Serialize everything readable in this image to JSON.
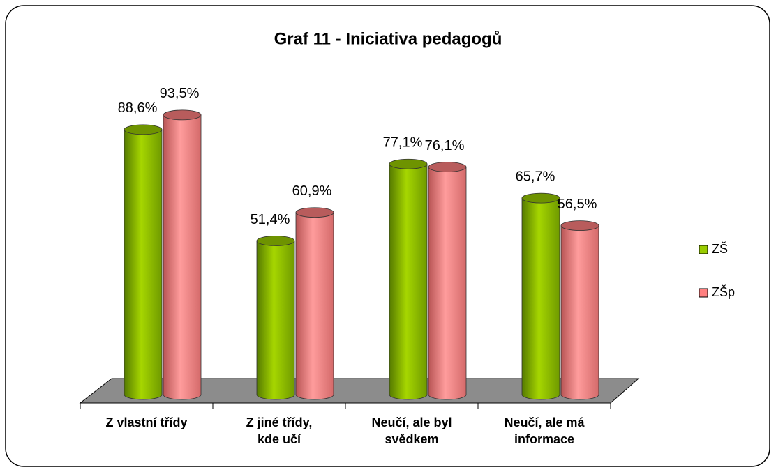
{
  "chart_data": {
    "type": "bar3d",
    "title": "Graf 11 - Iniciativa pedagogů",
    "categories": [
      "Z vlastní třídy",
      "Z jiné třídy,\nkde učí",
      "Neučí, ale byl\nsvědkem",
      "Neučí, ale má\ninformace"
    ],
    "series": [
      {
        "name": "ZŠ",
        "color": "#99cc00",
        "values": [
          88.6,
          51.4,
          77.1,
          65.7
        ],
        "value_labels": [
          "88,6%",
          "51,4%",
          "77,1%",
          "65,7%"
        ]
      },
      {
        "name": "ZŠp",
        "color": "#ff8080",
        "values": [
          93.5,
          60.9,
          76.1,
          56.5
        ],
        "value_labels": [
          "93,5%",
          "60,9%",
          "76,1%",
          "56,5%"
        ]
      }
    ]
  }
}
